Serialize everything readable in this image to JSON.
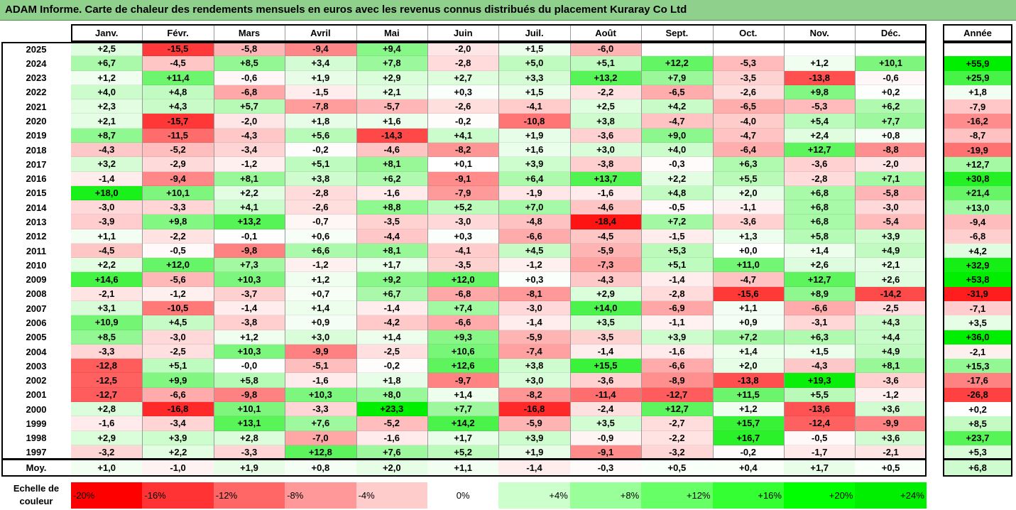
{
  "title": "ADAM Informe. Carte de chaleur des rendements mensuels en euros avec les revenus connus distribués du placement Kuraray Co Ltd",
  "chart_data": {
    "type": "heatmap",
    "title": "ADAM Informe. Carte de chaleur des rendements mensuels en euros avec les revenus connus distribués du placement Kuraray Co Ltd",
    "columns": [
      "Janv.",
      "Févr.",
      "Mars",
      "Avril",
      "Mai",
      "Juin",
      "Juil.",
      "Août",
      "Sept.",
      "Oct.",
      "Nov.",
      "Déc."
    ],
    "year_header": "Année",
    "rows": [
      {
        "year": "2025",
        "values": [
          "+2,5",
          "-15,5",
          "-5,8",
          "-9,4",
          "+9,4",
          "-2,0",
          "+1,5",
          "-6,0",
          "",
          "",
          "",
          ""
        ],
        "annual": ""
      },
      {
        "year": "2024",
        "values": [
          "+6,7",
          "-4,5",
          "+8,5",
          "+3,4",
          "+7,8",
          "-2,8",
          "+5,0",
          "+5,1",
          "+12,2",
          "-5,3",
          "+1,2",
          "+10,1"
        ],
        "annual": "+55,9"
      },
      {
        "year": "2023",
        "values": [
          "+1,2",
          "+11,4",
          "-0,6",
          "+1,9",
          "+2,9",
          "+2,7",
          "+3,3",
          "+13,2",
          "+7,9",
          "-3,5",
          "-13,8",
          "-0,6"
        ],
        "annual": "+25,9"
      },
      {
        "year": "2022",
        "values": [
          "+4,0",
          "+4,8",
          "-6,8",
          "-1,5",
          "+2,1",
          "+0,3",
          "+1,5",
          "-2,2",
          "-6,5",
          "-2,6",
          "+9,8",
          "+0,2"
        ],
        "annual": "+1,8"
      },
      {
        "year": "2021",
        "values": [
          "+2,3",
          "+4,3",
          "+5,7",
          "-7,8",
          "-5,7",
          "-2,6",
          "-4,1",
          "+2,5",
          "+4,2",
          "-6,5",
          "-5,3",
          "+6,2"
        ],
        "annual": "-7,9"
      },
      {
        "year": "2020",
        "values": [
          "+2,1",
          "-15,7",
          "-2,0",
          "+1,8",
          "+1,6",
          "-0,2",
          "-10,8",
          "+3,8",
          "-4,7",
          "-4,0",
          "+5,4",
          "+7,7"
        ],
        "annual": "-16,2"
      },
      {
        "year": "2019",
        "values": [
          "+8,7",
          "-11,5",
          "-4,3",
          "+5,6",
          "-14,3",
          "+4,1",
          "+1,9",
          "-3,6",
          "+9,0",
          "-4,7",
          "+2,4",
          "+0,8"
        ],
        "annual": "-8,7"
      },
      {
        "year": "2018",
        "values": [
          "-4,3",
          "-5,2",
          "-3,4",
          "-0,2",
          "-4,6",
          "-8,2",
          "+1,6",
          "+3,0",
          "+4,0",
          "-6,4",
          "+12,7",
          "-8,8"
        ],
        "annual": "-19,9"
      },
      {
        "year": "2017",
        "values": [
          "+3,2",
          "-2,9",
          "-1,2",
          "+5,1",
          "+8,1",
          "+0,1",
          "+3,9",
          "-3,8",
          "-0,3",
          "+6,3",
          "-3,6",
          "-2,0"
        ],
        "annual": "+12,7"
      },
      {
        "year": "2016",
        "values": [
          "-1,4",
          "-9,4",
          "+8,1",
          "+3,8",
          "+6,2",
          "-9,1",
          "+6,4",
          "+13,7",
          "+2,2",
          "+5,5",
          "-2,8",
          "+7,1"
        ],
        "annual": "+30,8"
      },
      {
        "year": "2015",
        "values": [
          "+18,0",
          "+10,1",
          "+2,2",
          "-2,8",
          "-1,6",
          "-7,9",
          "-1,9",
          "-1,6",
          "+4,8",
          "+2,0",
          "+6,8",
          "-5,8"
        ],
        "annual": "+21,4"
      },
      {
        "year": "2014",
        "values": [
          "-3,0",
          "-3,3",
          "+4,1",
          "-2,6",
          "+8,8",
          "+5,2",
          "+7,0",
          "-4,6",
          "-0,5",
          "-1,1",
          "+6,8",
          "-3,0"
        ],
        "annual": "+13,0"
      },
      {
        "year": "2013",
        "values": [
          "-3,9",
          "+9,8",
          "+13,2",
          "-0,7",
          "-3,5",
          "-3,0",
          "-4,8",
          "-18,4",
          "+7,2",
          "-3,6",
          "+6,8",
          "-5,4"
        ],
        "annual": "-9,4"
      },
      {
        "year": "2012",
        "values": [
          "+1,1",
          "-2,2",
          "-0,1",
          "+0,6",
          "-4,4",
          "+0,3",
          "-6,6",
          "-4,5",
          "-1,5",
          "+1,3",
          "+5,8",
          "+3,9"
        ],
        "annual": "-6,8"
      },
      {
        "year": "2011",
        "values": [
          "-4,5",
          "-0,5",
          "-9,8",
          "+6,6",
          "+8,1",
          "-4,1",
          "+4,5",
          "-5,9",
          "+5,3",
          "+0,0",
          "+1,4",
          "+4,9"
        ],
        "annual": "+4,2"
      },
      {
        "year": "2010",
        "values": [
          "+2,2",
          "+12,0",
          "+7,3",
          "-1,2",
          "+1,7",
          "-3,5",
          "-1,2",
          "-7,3",
          "+5,1",
          "+11,0",
          "+2,6",
          "+2,1"
        ],
        "annual": "+32,9"
      },
      {
        "year": "2009",
        "values": [
          "+14,6",
          "-5,6",
          "+10,3",
          "+1,2",
          "+9,2",
          "+12,0",
          "+0,3",
          "-4,3",
          "-1,4",
          "-4,7",
          "+12,7",
          "+2,6"
        ],
        "annual": "+53,8"
      },
      {
        "year": "2008",
        "values": [
          "-2,1",
          "-1,2",
          "-3,7",
          "+0,7",
          "+6,7",
          "-6,8",
          "-8,1",
          "+2,9",
          "-2,8",
          "-15,6",
          "+8,9",
          "-14,2"
        ],
        "annual": "-31,9"
      },
      {
        "year": "2007",
        "values": [
          "+3,1",
          "-10,5",
          "-1,4",
          "+1,4",
          "-1,4",
          "+7,4",
          "-3,0",
          "+14,0",
          "-6,9",
          "+1,1",
          "-6,6",
          "-2,5"
        ],
        "annual": "-7,1"
      },
      {
        "year": "2006",
        "values": [
          "+10,9",
          "+4,5",
          "-3,8",
          "+0,9",
          "-4,2",
          "-6,6",
          "-1,4",
          "+3,5",
          "-1,1",
          "+0,9",
          "-3,1",
          "+4,3"
        ],
        "annual": "+3,5"
      },
      {
        "year": "2005",
        "values": [
          "+8,5",
          "-3,0",
          "+1,2",
          "+3,0",
          "+1,4",
          "+9,3",
          "-5,9",
          "-3,5",
          "+3,9",
          "+7,2",
          "+6,3",
          "+4,4"
        ],
        "annual": "+36,0"
      },
      {
        "year": "2004",
        "values": [
          "-3,3",
          "-2,5",
          "+10,3",
          "-9,9",
          "-2,5",
          "+10,6",
          "-7,4",
          "-1,4",
          "-1,6",
          "+1,4",
          "+1,5",
          "+4,9"
        ],
        "annual": "-2,1"
      },
      {
        "year": "2003",
        "values": [
          "-12,8",
          "+5,1",
          "-0,0",
          "-5,1",
          "-0,2",
          "+12,6",
          "+3,8",
          "+15,5",
          "-6,6",
          "+2,0",
          "-4,3",
          "+8,1"
        ],
        "annual": "+15,3"
      },
      {
        "year": "2002",
        "values": [
          "-12,5",
          "+9,9",
          "+5,8",
          "-1,6",
          "+1,8",
          "-9,7",
          "+3,0",
          "-3,6",
          "-8,9",
          "-13,8",
          "+19,3",
          "-3,6"
        ],
        "annual": "-17,6"
      },
      {
        "year": "2001",
        "values": [
          "-12,7",
          "-6,6",
          "-9,8",
          "+10,3",
          "+8,0",
          "+1,4",
          "-8,2",
          "-11,4",
          "-12,7",
          "+11,5",
          "+5,5",
          "-1,2"
        ],
        "annual": "-26,8"
      },
      {
        "year": "2000",
        "values": [
          "+2,8",
          "-16,8",
          "+10,1",
          "-3,3",
          "+23,3",
          "+7,7",
          "-16,8",
          "-2,4",
          "+12,7",
          "+1,2",
          "-13,6",
          "+3,6"
        ],
        "annual": "+0,2"
      },
      {
        "year": "1999",
        "values": [
          "-1,6",
          "-3,4",
          "+13,1",
          "+7,6",
          "-5,2",
          "+14,2",
          "-5,9",
          "+3,5",
          "-2,7",
          "+15,7",
          "-12,4",
          "-9,9"
        ],
        "annual": "+8,5"
      },
      {
        "year": "1998",
        "values": [
          "+2,9",
          "+3,9",
          "+2,8",
          "-7,0",
          "-1,6",
          "+1,7",
          "+3,9",
          "-0,9",
          "-2,2",
          "+16,7",
          "-0,5",
          "+3,6"
        ],
        "annual": "+23,7"
      },
      {
        "year": "1997",
        "values": [
          "-3,2",
          "+2,2",
          "-3,3",
          "+12,8",
          "+7,6",
          "+5,2",
          "+1,9",
          "-9,1",
          "-3,2",
          "-0,2",
          "-1,7",
          "-2,1"
        ],
        "annual": "+5,3"
      }
    ],
    "average": {
      "label": "Moy.",
      "values": [
        "+1,0",
        "-1,0",
        "+1,9",
        "+0,8",
        "+2,0",
        "+1,1",
        "-1,4",
        "-0,3",
        "+0,5",
        "+0,4",
        "+1,7",
        "+0,5"
      ],
      "annual": "+6,8"
    },
    "scale": {
      "label": "Echelle de couleur",
      "steps": [
        {
          "label": "-20%",
          "value": -20,
          "color": "#ff0000",
          "align": "left"
        },
        {
          "label": "-16%",
          "value": -16,
          "color": "#ff3333",
          "align": "left"
        },
        {
          "label": "-12%",
          "value": -12,
          "color": "#ff6666",
          "align": "left"
        },
        {
          "label": "-8%",
          "value": -8,
          "color": "#ff9999",
          "align": "left"
        },
        {
          "label": "-4%",
          "value": -4,
          "color": "#ffcccc",
          "align": "left"
        },
        {
          "label": "0%",
          "value": 0,
          "color": "#ffffff",
          "align": "center"
        },
        {
          "label": "+4%",
          "value": 4,
          "color": "#ccffcc",
          "align": "right"
        },
        {
          "label": "+8%",
          "value": 8,
          "color": "#99ff99",
          "align": "right"
        },
        {
          "label": "+12%",
          "value": 12,
          "color": "#66ff66",
          "align": "right"
        },
        {
          "label": "+16%",
          "value": 16,
          "color": "#33ff33",
          "align": "right"
        },
        {
          "label": "+20%",
          "value": 20,
          "color": "#00ff00",
          "align": "right"
        },
        {
          "label": "+24%",
          "value": 24,
          "color": "#00ee00",
          "align": "right"
        }
      ]
    }
  },
  "colors": {
    "title_background": "#8ed08c",
    "negative_max": "#ff0000",
    "positive_max": "#00ee00",
    "neutral": "#ffffff"
  }
}
